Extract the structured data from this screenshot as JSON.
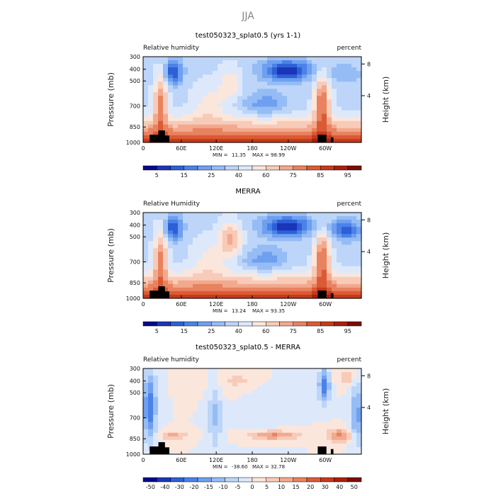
{
  "figure_title": "JJA",
  "chart_data": [
    {
      "type": "heatmap",
      "title": "test050323_splat0.5 (yrs 1-1)",
      "left_label": "Relative humidity",
      "right_label": "percent",
      "ylabel": "Pressure (mb)",
      "y2label": "Height (km)",
      "x_ticks": [
        "0",
        "60E",
        "120E",
        "180",
        "120W",
        "60W"
      ],
      "y_ticks": [
        "300",
        "400",
        "500",
        "700",
        "850",
        "1000"
      ],
      "y2_ticks": [
        "8",
        "4"
      ],
      "min_label": "MIN =",
      "min_value": "11.35",
      "max_label": "MAX =",
      "max_value": "98.99",
      "colorbar": {
        "labels": [
          "5",
          "15",
          "25",
          "40",
          "60",
          "75",
          "85",
          "95"
        ],
        "colors": [
          "#08088c",
          "#1a35b8",
          "#2d60d6",
          "#4a82e8",
          "#6f9ff0",
          "#95bcf5",
          "#bcd5f8",
          "#dde9fb",
          "#fbe6dc",
          "#f7cbb8",
          "#f2a98e",
          "#e8825f",
          "#db5a35",
          "#c63a1a",
          "#a8200c",
          "#7a0d06"
        ]
      }
    },
    {
      "type": "heatmap",
      "title": "MERRA",
      "left_label": "Relative Humidity",
      "right_label": "percent",
      "ylabel": "Pressure (mb)",
      "y2label": "Height (km)",
      "x_ticks": [
        "0",
        "60E",
        "120E",
        "180",
        "120W",
        "60W"
      ],
      "y_ticks": [
        "300",
        "400",
        "500",
        "700",
        "850",
        "1000"
      ],
      "y2_ticks": [
        "8",
        "4"
      ],
      "min_label": "MIN =",
      "min_value": "13.24",
      "max_label": "MAX =",
      "max_value": "93.35",
      "colorbar": {
        "labels": [
          "5",
          "15",
          "25",
          "40",
          "60",
          "75",
          "85",
          "95"
        ],
        "colors": [
          "#08088c",
          "#1a35b8",
          "#2d60d6",
          "#4a82e8",
          "#6f9ff0",
          "#95bcf5",
          "#bcd5f8",
          "#dde9fb",
          "#fbe6dc",
          "#f7cbb8",
          "#f2a98e",
          "#e8825f",
          "#db5a35",
          "#c63a1a",
          "#a8200c",
          "#7a0d06"
        ]
      }
    },
    {
      "type": "heatmap",
      "title": "test050323_splat0.5 - MERRA",
      "left_label": "Relative humidity",
      "right_label": "percent",
      "ylabel": "Pressure (mb)",
      "y2label": "Height (km)",
      "x_ticks": [
        "0",
        "60E",
        "120E",
        "180",
        "120W",
        "60W"
      ],
      "y_ticks": [
        "300",
        "400",
        "500",
        "700",
        "850",
        "1000"
      ],
      "y2_ticks": [
        "8",
        "4"
      ],
      "min_label": "MIN =",
      "min_value": "-38.60",
      "max_label": "MAX =",
      "max_value": "32.78",
      "colorbar": {
        "labels": [
          "-50",
          "-40",
          "-30",
          "-20",
          "-15",
          "-10",
          "-5",
          "0",
          "5",
          "10",
          "15",
          "20",
          "30",
          "40",
          "50"
        ],
        "colors": [
          "#08088c",
          "#1a35b8",
          "#2d60d6",
          "#4a82e8",
          "#6f9ff0",
          "#95bcf5",
          "#bcd5f8",
          "#dde9fb",
          "#fbe6dc",
          "#f7cbb8",
          "#f2a98e",
          "#e8825f",
          "#db5a35",
          "#c63a1a",
          "#a8200c",
          "#7a0d06"
        ]
      }
    }
  ]
}
